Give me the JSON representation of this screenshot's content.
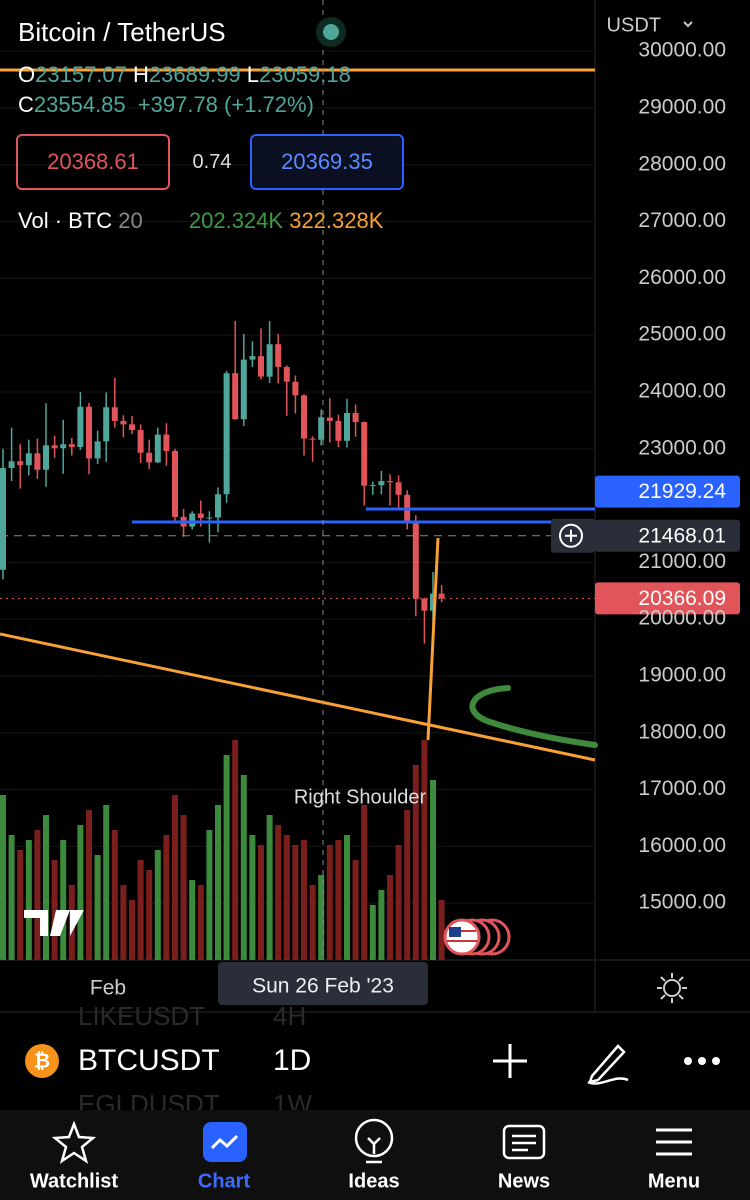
{
  "header": {
    "symbol": "Bitcoin / TetherUS",
    "ohlc": [
      {
        "label": "O",
        "value": 23157.07
      },
      {
        "label": "H",
        "value": 23689.99
      },
      {
        "label": "L",
        "value": 23059.18
      },
      {
        "label": "C",
        "value": 23554.85
      }
    ],
    "change": "+397.78 (+1.72%)",
    "bid": 20368.61,
    "spread": 0.74,
    "ask": 20369.35,
    "volume": {
      "label": "Vol · BTC",
      "period": 20,
      "value": "202.324K",
      "ma": "322.328K"
    }
  },
  "chart": {
    "type": "candlestick",
    "currency": "USDT",
    "ylim": [
      14000,
      30900
    ],
    "yticks": [
      {
        "value": 30000,
        "label": "30000.00"
      },
      {
        "value": 29000,
        "label": "29000.00"
      },
      {
        "value": 28000,
        "label": "28000.00"
      },
      {
        "value": 27000,
        "label": "27000.00"
      },
      {
        "value": 26000,
        "label": "26000.00"
      },
      {
        "value": 25000,
        "label": "25000.00"
      },
      {
        "value": 24000,
        "label": "24000.00"
      },
      {
        "value": 23000,
        "label": "23000.00"
      },
      {
        "value": 21000,
        "label": "21000.00"
      },
      {
        "value": 20000,
        "label": "20000.00"
      },
      {
        "value": 19000,
        "label": "19000.00"
      },
      {
        "value": 18000,
        "label": "18000.00"
      },
      {
        "value": 17000,
        "label": "17000.00"
      },
      {
        "value": 16000,
        "label": "16000.00"
      },
      {
        "value": 15000,
        "label": "15000.00"
      }
    ],
    "up_color": "#4fa79b",
    "down_color": "#e0545a",
    "volume_up_color": "#3c8a3c",
    "volume_down_color": "#7b1e1e",
    "candles": [
      [
        20870,
        23000,
        20700,
        22660
      ],
      [
        22660,
        23370,
        22430,
        22780
      ],
      [
        22780,
        23080,
        22300,
        22710
      ],
      [
        22710,
        23160,
        22530,
        22920
      ],
      [
        22920,
        23180,
        22470,
        22630
      ],
      [
        22630,
        23800,
        22330,
        23060
      ],
      [
        23060,
        23230,
        22840,
        23010
      ],
      [
        23010,
        23510,
        22560,
        23080
      ],
      [
        23080,
        23190,
        22880,
        23030
      ],
      [
        23030,
        24000,
        22980,
        23740
      ],
      [
        23740,
        23810,
        22550,
        22830
      ],
      [
        22830,
        23320,
        22730,
        23130
      ],
      [
        23130,
        23990,
        22770,
        23730
      ],
      [
        23730,
        24250,
        23370,
        23490
      ],
      [
        23490,
        23590,
        23200,
        23430
      ],
      [
        23430,
        23580,
        23260,
        23330
      ],
      [
        23330,
        23430,
        22750,
        22930
      ],
      [
        22930,
        23160,
        22640,
        22760
      ],
      [
        22760,
        23370,
        22750,
        23250
      ],
      [
        23250,
        23450,
        22700,
        22960
      ],
      [
        22960,
        23000,
        21690,
        21800
      ],
      [
        21800,
        21940,
        21450,
        21630
      ],
      [
        21630,
        21900,
        21580,
        21860
      ],
      [
        21860,
        22090,
        21630,
        21780
      ],
      [
        21780,
        21900,
        21350,
        21790
      ],
      [
        21790,
        22320,
        21530,
        22200
      ],
      [
        22200,
        24370,
        22050,
        24330
      ],
      [
        24330,
        25250,
        23510,
        23520
      ],
      [
        23520,
        25020,
        23400,
        24570
      ],
      [
        24570,
        24890,
        24440,
        24630
      ],
      [
        24630,
        25120,
        24220,
        24270
      ],
      [
        24270,
        25250,
        24160,
        24840
      ],
      [
        24840,
        25020,
        24150,
        24440
      ],
      [
        24440,
        24470,
        23580,
        24180
      ],
      [
        24180,
        24290,
        23620,
        23940
      ],
      [
        23940,
        23960,
        22880,
        23180
      ],
      [
        23180,
        23220,
        22770,
        23160
      ],
      [
        23157.07,
        23689.99,
        23059.18,
        23554.85
      ],
      [
        23550,
        23890,
        23110,
        23490
      ],
      [
        23490,
        23600,
        23030,
        23140
      ],
      [
        23140,
        23880,
        23020,
        23630
      ],
      [
        23630,
        23780,
        23210,
        23470
      ],
      [
        23470,
        23480,
        22000,
        22350
      ],
      [
        22350,
        22420,
        22190,
        22360
      ],
      [
        22360,
        22610,
        22200,
        22430
      ],
      [
        22430,
        22550,
        22000,
        22410
      ],
      [
        22410,
        22530,
        21930,
        22190
      ],
      [
        22190,
        22270,
        21580,
        21700
      ],
      [
        21700,
        21830,
        20050,
        20360
      ],
      [
        20360,
        20380,
        19570,
        20150
      ],
      [
        20150,
        20830,
        19900,
        20450
      ],
      [
        20450,
        20600,
        20300,
        20366.09
      ]
    ],
    "volumes": [
      330,
      250,
      220,
      240,
      260,
      290,
      200,
      240,
      150,
      270,
      300,
      210,
      310,
      260,
      150,
      120,
      200,
      180,
      220,
      250,
      330,
      290,
      160,
      150,
      260,
      310,
      410,
      440,
      370,
      250,
      230,
      290,
      270,
      250,
      230,
      240,
      150,
      170,
      230,
      240,
      250,
      200,
      310,
      110,
      140,
      170,
      230,
      300,
      390,
      440,
      360,
      120
    ],
    "price_tags": [
      {
        "value": 21929.24,
        "color": "#2962ff"
      },
      {
        "value": 21468.01,
        "color": "#2a2e39"
      },
      {
        "value": 20366.09,
        "color": "#e0545a"
      }
    ],
    "annotation": "Right Shoulder",
    "x_labels": [
      "Feb"
    ],
    "crosshair_label": "Sun 26 Feb '23"
  },
  "symbol_bar": {
    "symbol": "BTCUSDT",
    "interval": "1D",
    "ghost": [
      [
        "LIKEUSDT",
        "4H"
      ],
      [
        "EGLDUSDT",
        "1W"
      ]
    ]
  },
  "nav": [
    "Watchlist",
    "Chart",
    "Ideas",
    "News",
    "Menu"
  ]
}
